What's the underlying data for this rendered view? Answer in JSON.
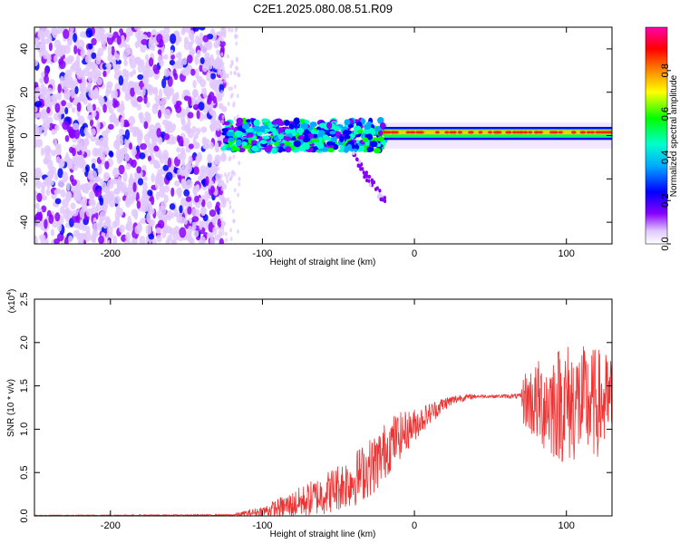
{
  "figure": {
    "title": "C2E1.2025.080.08.51.R09"
  },
  "chart_data": [
    {
      "type": "heatmap",
      "xlabel": "Height of straight line (km)",
      "ylabel": "Frequency (Hz)",
      "xlim": [
        -250,
        130
      ],
      "ylim": [
        -50,
        50
      ],
      "xticks": [
        -200,
        -100,
        0,
        100
      ],
      "yticks": [
        -40,
        -20,
        0,
        20,
        40
      ],
      "grid": false,
      "colorbar": {
        "label": "Normalized spectral amplitude",
        "range": [
          0.0,
          1.0
        ],
        "ticks": [
          "0.0",
          "0.2",
          "0.4",
          "0.6",
          "0.8"
        ],
        "colormap": [
          "#ffffff",
          "#8800ff",
          "#0000ff",
          "#00ffff",
          "#00ff00",
          "#ffff00",
          "#ff8800",
          "#ff0000",
          "#ff00ff"
        ]
      },
      "regions": [
        {
          "x": [
            -250,
            -125
          ],
          "freq": [
            -50,
            50
          ],
          "amplitude": 0.15,
          "pattern": "scattered noise"
        },
        {
          "x": [
            -125,
            -20
          ],
          "freq": [
            -8,
            8
          ],
          "amplitude": 0.45,
          "pattern": "blotchy band"
        },
        {
          "x": [
            -20,
            130
          ],
          "freq": [
            -2,
            3
          ],
          "amplitude": 0.85,
          "pattern": "narrow line near 2 Hz"
        }
      ]
    },
    {
      "type": "line",
      "xlabel": "Height of straight line (km)",
      "ylabel": "SNR (10 * v/v)",
      "y_multiplier": "(x10^4)",
      "xlim": [
        -250,
        130
      ],
      "ylim": [
        0,
        2.5
      ],
      "xticks": [
        -200,
        -100,
        0,
        100
      ],
      "yticks": [
        "0.0",
        "0.5",
        "1.0",
        "1.5",
        "2.0",
        "2.5"
      ],
      "grid": false,
      "color": "#ee3333",
      "envelope": {
        "x": [
          -250,
          -120,
          -100,
          -80,
          -60,
          -40,
          -25,
          -15,
          0,
          10,
          20,
          30,
          40,
          50,
          70,
          72,
          80,
          90,
          100,
          110,
          120,
          130
        ],
        "y": [
          0.005,
          0.01,
          0.05,
          0.13,
          0.25,
          0.42,
          0.62,
          0.85,
          1.05,
          1.18,
          1.3,
          1.36,
          1.38,
          1.38,
          1.38,
          1.35,
          1.3,
          1.3,
          1.3,
          1.3,
          1.3,
          1.3
        ],
        "noise": [
          0.003,
          0.005,
          0.04,
          0.1,
          0.15,
          0.2,
          0.22,
          0.2,
          0.12,
          0.08,
          0.05,
          0.03,
          0.015,
          0.01,
          0.02,
          0.2,
          0.3,
          0.4,
          0.45,
          0.42,
          0.4,
          0.35
        ]
      }
    }
  ]
}
